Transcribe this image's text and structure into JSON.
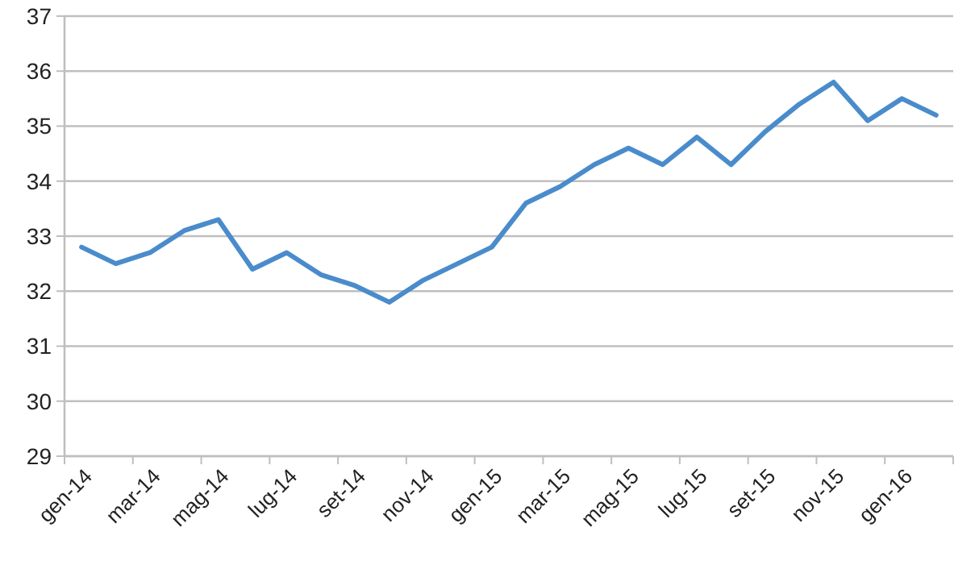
{
  "chart_data": {
    "type": "line",
    "categories": [
      "gen-14",
      null,
      "mar-14",
      null,
      "mag-14",
      null,
      "lug-14",
      null,
      "set-14",
      null,
      "nov-14",
      null,
      "gen-15",
      null,
      "mar-15",
      null,
      "mag-15",
      null,
      "lug-15",
      null,
      "set-15",
      null,
      "nov-15",
      null,
      "gen-16",
      null
    ],
    "series": [
      {
        "color": "#4a8ccb",
        "values": [
          32.8,
          32.5,
          32.7,
          33.1,
          33.3,
          32.4,
          32.7,
          32.3,
          32.1,
          31.8,
          32.2,
          32.5,
          32.8,
          33.6,
          33.9,
          34.3,
          34.6,
          34.3,
          34.8,
          34.3,
          34.9,
          35.4,
          35.8,
          35.1,
          35.5,
          35.2
        ]
      }
    ],
    "ylim": [
      29,
      37
    ],
    "yticks": [
      29,
      30,
      31,
      32,
      33,
      34,
      35,
      36,
      37
    ],
    "grid": "y",
    "marker": "none",
    "line_style": "solid"
  }
}
